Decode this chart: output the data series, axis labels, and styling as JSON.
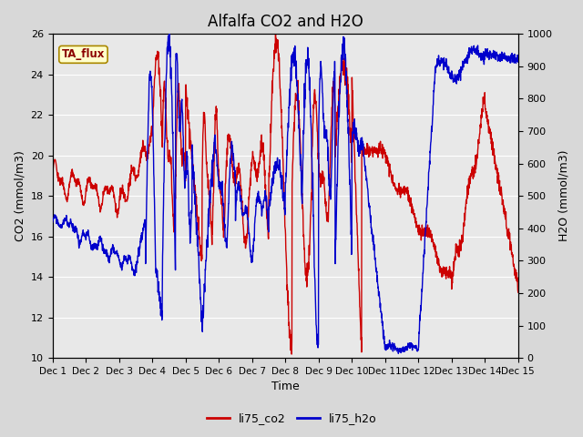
{
  "title": "Alfalfa CO2 and H2O",
  "xlabel": "Time",
  "ylabel_left": "CO2 (mmol/m3)",
  "ylabel_right": "H2O (mmol/m3)",
  "ylim_left": [
    10,
    26
  ],
  "ylim_right": [
    0,
    1000
  ],
  "yticks_left": [
    10,
    12,
    14,
    16,
    18,
    20,
    22,
    24,
    26
  ],
  "yticks_right": [
    0,
    100,
    200,
    300,
    400,
    500,
    600,
    700,
    800,
    900,
    1000
  ],
  "xtick_labels": [
    "Dec 1",
    "Dec 2",
    "Dec 3",
    "Dec 4",
    "Dec 5",
    "Dec 6",
    "Dec 7",
    "Dec 8",
    "Dec 9",
    "Dec 10",
    "Dec 11",
    "Dec 12",
    "Dec 13",
    "Dec 14",
    "Dec 15"
  ],
  "color_co2": "#cc0000",
  "color_h2o": "#0000cc",
  "legend_label_co2": "li75_co2",
  "legend_label_h2o": "li75_h2o",
  "annotation_text": "TA_flux",
  "fig_bg_color": "#d8d8d8",
  "plot_bg_color": "#e8e8e8",
  "line_width": 1.0,
  "title_fontsize": 12
}
